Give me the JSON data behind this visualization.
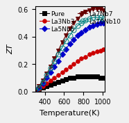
{
  "title": "",
  "xlabel": "Temperature(K)",
  "ylabel": "ZT",
  "xlim": [
    300,
    1020
  ],
  "ylim": [
    0,
    0.62
  ],
  "yticks": [
    0.0,
    0.2,
    0.4,
    0.6
  ],
  "xticks": [
    400,
    600,
    800,
    1000
  ],
  "series": [
    {
      "label": "Pure",
      "color": "black",
      "marker": "s",
      "markersize": 4,
      "markerfacecolor": "black",
      "markeredgecolor": "black",
      "fillstyle": "full",
      "T": [
        300,
        340,
        380,
        420,
        460,
        500,
        540,
        580,
        620,
        660,
        700,
        740,
        780,
        820,
        860,
        900,
        940,
        980,
        1010
      ],
      "ZT": [
        0.01,
        0.02,
        0.03,
        0.04,
        0.05,
        0.06,
        0.07,
        0.08,
        0.09,
        0.1,
        0.1,
        0.11,
        0.11,
        0.11,
        0.11,
        0.11,
        0.11,
        0.1,
        0.1
      ]
    },
    {
      "label": "La3Nb3",
      "color": "#cc0000",
      "marker": "o",
      "markersize": 4,
      "markerfacecolor": "#cc0000",
      "markeredgecolor": "#cc0000",
      "fillstyle": "full",
      "T": [
        300,
        340,
        380,
        420,
        460,
        500,
        540,
        580,
        620,
        660,
        700,
        740,
        780,
        820,
        860,
        900,
        940,
        980,
        1010
      ],
      "ZT": [
        0.01,
        0.02,
        0.04,
        0.06,
        0.08,
        0.1,
        0.12,
        0.14,
        0.16,
        0.18,
        0.2,
        0.22,
        0.24,
        0.25,
        0.27,
        0.28,
        0.29,
        0.3,
        0.31
      ]
    },
    {
      "label": "La5Nb5",
      "color": "#0000cc",
      "marker": "D",
      "markersize": 4,
      "markerfacecolor": "#0000cc",
      "markeredgecolor": "#0000cc",
      "fillstyle": "full",
      "T": [
        300,
        340,
        380,
        420,
        460,
        500,
        540,
        580,
        620,
        660,
        700,
        740,
        780,
        820,
        860,
        900,
        940,
        980,
        1010
      ],
      "ZT": [
        0.01,
        0.03,
        0.06,
        0.1,
        0.14,
        0.18,
        0.22,
        0.27,
        0.31,
        0.35,
        0.38,
        0.41,
        0.43,
        0.45,
        0.47,
        0.48,
        0.49,
        0.5,
        0.5
      ]
    },
    {
      "label": "La7Nb7",
      "color": "#660000",
      "marker": "v",
      "markersize": 5,
      "markerfacecolor": "#660000",
      "markeredgecolor": "#660000",
      "fillstyle": "full",
      "T": [
        300,
        340,
        380,
        420,
        460,
        500,
        540,
        580,
        620,
        660,
        700,
        740,
        780,
        820,
        860,
        900,
        940,
        980,
        1010
      ],
      "ZT": [
        0.01,
        0.04,
        0.08,
        0.13,
        0.18,
        0.24,
        0.3,
        0.36,
        0.41,
        0.46,
        0.5,
        0.53,
        0.56,
        0.58,
        0.59,
        0.6,
        0.6,
        0.6,
        0.59
      ]
    },
    {
      "label": "La10Nb10",
      "color": "#008080",
      "marker": "o",
      "markersize": 5,
      "markerfacecolor": "none",
      "markeredgecolor": "#008080",
      "fillstyle": "none",
      "T": [
        300,
        340,
        380,
        420,
        460,
        500,
        540,
        580,
        620,
        660,
        700,
        740,
        780,
        820,
        860,
        900,
        940,
        980,
        1010
      ],
      "ZT": [
        0.01,
        0.03,
        0.07,
        0.12,
        0.17,
        0.22,
        0.27,
        0.32,
        0.37,
        0.41,
        0.45,
        0.48,
        0.5,
        0.52,
        0.53,
        0.54,
        0.54,
        0.54,
        0.53
      ]
    }
  ],
  "background_color": "#f0f0f0",
  "legend_fontsize": 6.5,
  "axis_fontsize": 8,
  "tick_fontsize": 7
}
